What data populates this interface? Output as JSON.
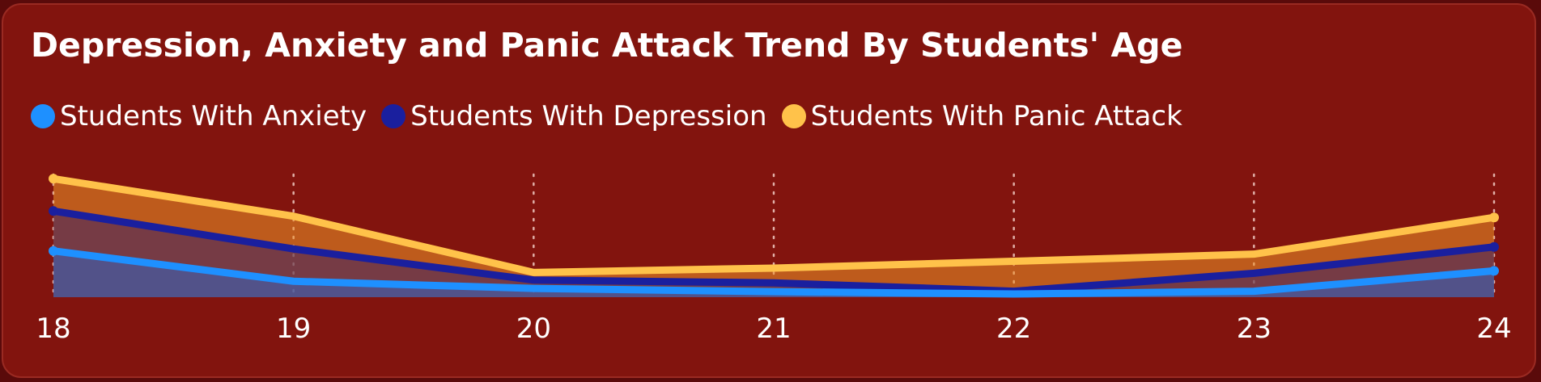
{
  "chart_data": {
    "type": "area",
    "title": "Depression, Anxiety and Panic Attack Trend By Students' Age",
    "xlabel": "",
    "ylabel": "",
    "categories": [
      "18",
      "19",
      "20",
      "21",
      "22",
      "23",
      "24"
    ],
    "series": [
      {
        "name": "Students With Anxiety",
        "color": "#1e90ff",
        "values": [
          11.6,
          4.0,
          2.2,
          1.4,
          0.8,
          1.5,
          6.6
        ]
      },
      {
        "name": "Students With Depression",
        "color": "#1a1f9e",
        "values": [
          21.6,
          12.1,
          4.3,
          3.6,
          1.5,
          6.0,
          12.6
        ]
      },
      {
        "name": "Students With Panic Attack",
        "color": "#ffc24a",
        "values": [
          29.7,
          20.3,
          6.2,
          7.3,
          9.0,
          10.8,
          20.0
        ]
      }
    ],
    "ylim": [
      0,
      33
    ],
    "grid": "vertical-dotted",
    "legend_position": "top-left"
  }
}
